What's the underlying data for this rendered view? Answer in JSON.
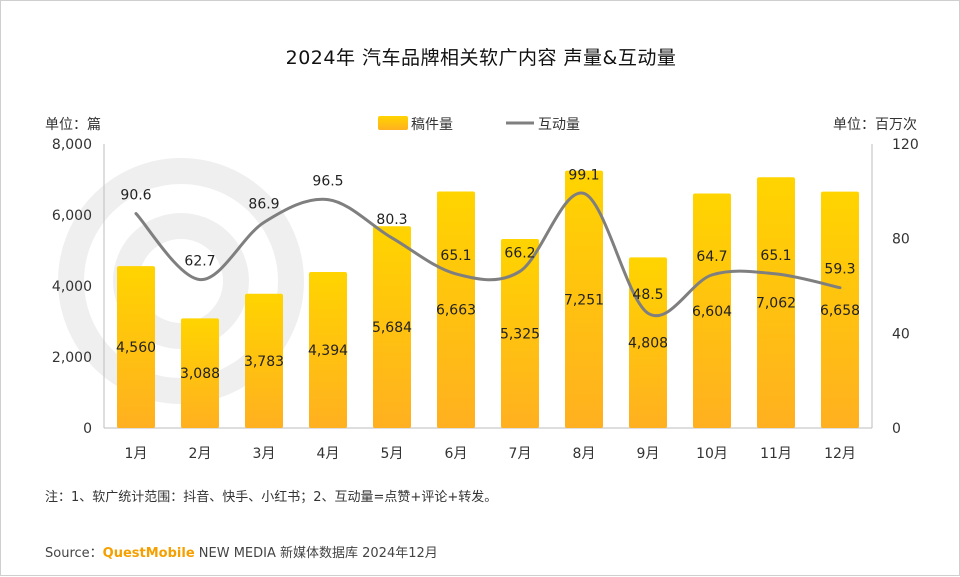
{
  "title": "2024年 汽车品牌相关软广内容 声量&互动量",
  "left_unit": "单位：篇",
  "right_unit": "单位：百万次",
  "note": "注：1、软广统计范围：抖音、快手、小红书；2、互动量=点赞+评论+转发。",
  "source": {
    "prefix": "Source：",
    "brand": "QuestMobile",
    "suffix": " NEW MEDIA 新媒体数据库 2024年12月"
  },
  "colors": {
    "bar_top": "#ffd400",
    "bar_bottom": "#ffb020",
    "line": "#7f7f7f",
    "axis": "#bdbdbd"
  },
  "chart_data": {
    "type": "bar",
    "categories": [
      "1月",
      "2月",
      "3月",
      "4月",
      "5月",
      "6月",
      "7月",
      "8月",
      "9月",
      "10月",
      "11月",
      "12月"
    ],
    "series": [
      {
        "name": "稿件量",
        "type": "bar",
        "axis": "left",
        "values": [
          4560,
          3088,
          3783,
          4394,
          5684,
          6663,
          5325,
          7251,
          4808,
          6604,
          7062,
          6658
        ],
        "labels": [
          "4,560",
          "3,088",
          "3,783",
          "4,394",
          "5,684",
          "6,663",
          "5,325",
          "7,251",
          "4,808",
          "6,604",
          "7,062",
          "6,658"
        ]
      },
      {
        "name": "互动量",
        "type": "line",
        "axis": "right",
        "values": [
          90.6,
          62.7,
          86.9,
          96.5,
          80.3,
          65.1,
          66.2,
          99.1,
          48.5,
          64.7,
          65.1,
          59.3
        ],
        "labels": [
          "90.6",
          "62.7",
          "86.9",
          "96.5",
          "80.3",
          "65.1",
          "66.2",
          "99.1",
          "48.5",
          "64.7",
          "65.1",
          "59.3"
        ]
      }
    ],
    "ylim_left": [
      0,
      8000
    ],
    "ylim_right": [
      0,
      120
    ],
    "yticks_left": [
      "0",
      "2,000",
      "4,000",
      "6,000",
      "8,000"
    ],
    "yticks_right": [
      "0",
      "40",
      "80",
      "120"
    ],
    "legend_position": "top-center",
    "grid": false
  }
}
